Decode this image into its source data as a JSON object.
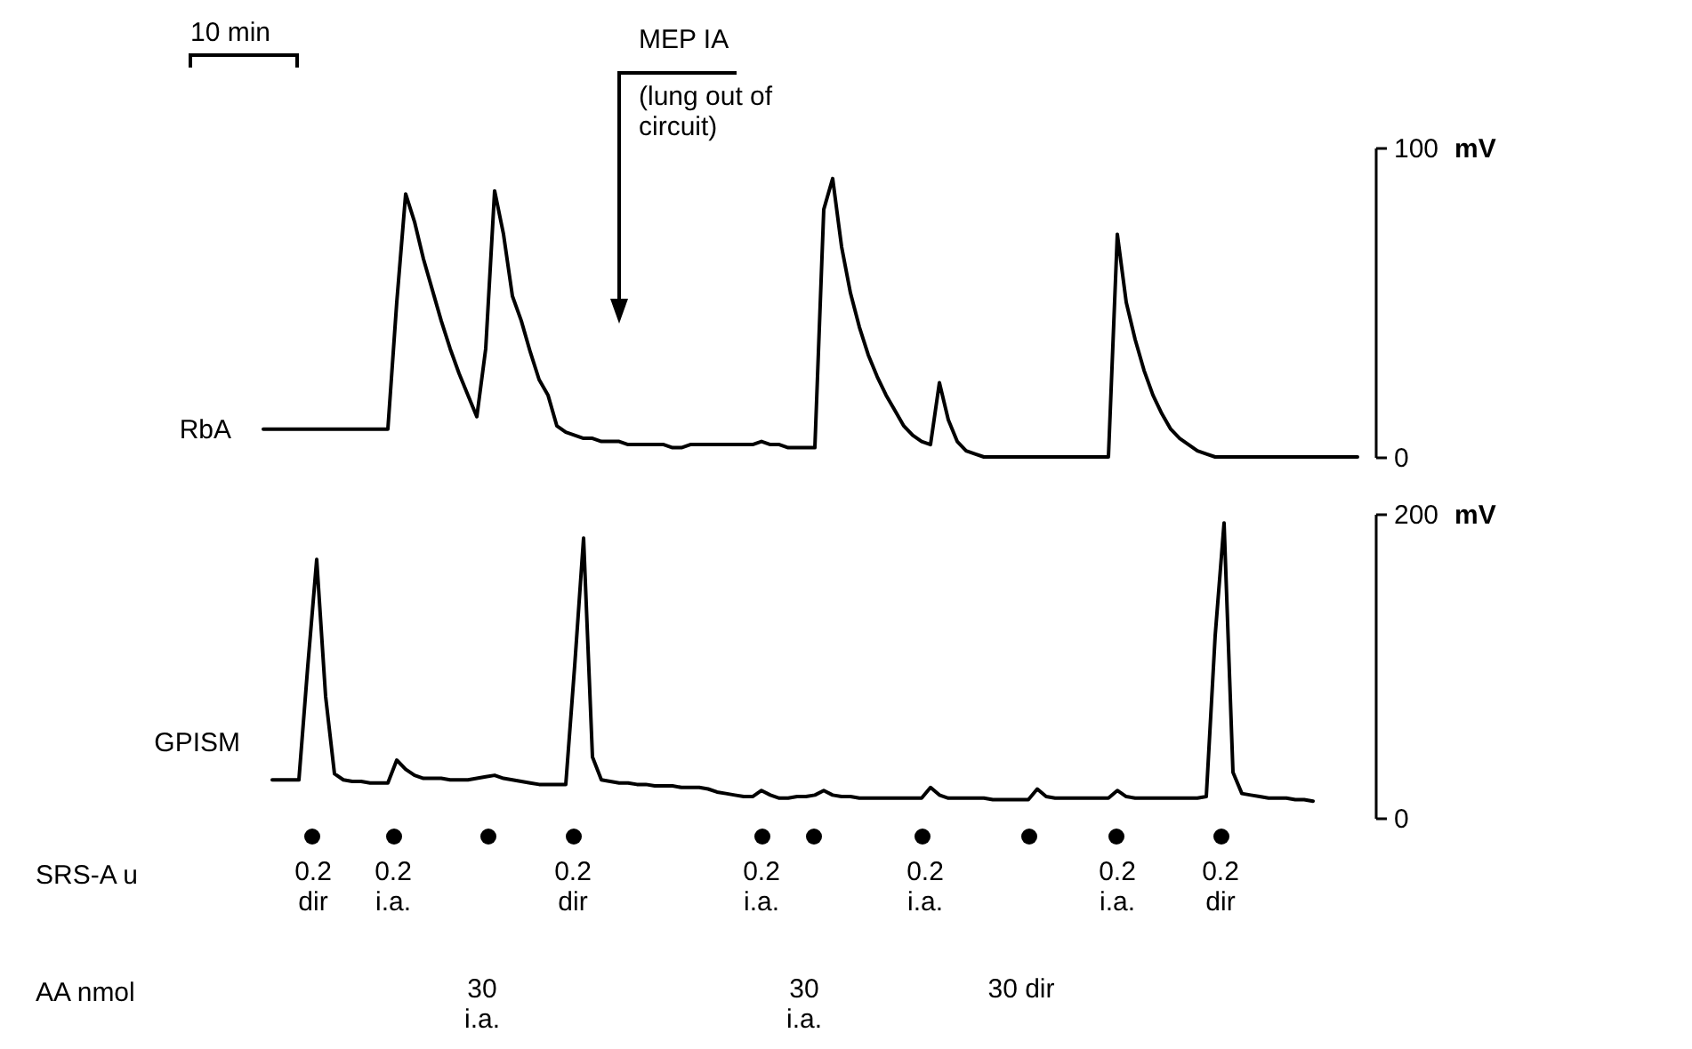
{
  "chart_data": [
    {
      "type": "line",
      "categories": [
        null,
        null,
        null,
        null,
        null,
        null,
        null,
        null,
        null,
        null,
        null,
        null,
        null,
        null,
        null,
        null,
        null,
        null,
        null,
        null,
        null,
        null,
        null,
        null,
        null,
        null,
        null,
        null,
        null,
        null,
        null,
        null,
        null,
        null,
        null,
        null,
        null,
        null,
        null,
        null,
        null,
        null,
        null,
        null,
        null,
        null,
        null,
        null,
        null,
        null,
        null,
        null,
        null,
        null,
        null,
        null,
        null,
        null,
        null,
        null,
        null,
        null,
        null,
        null,
        null,
        null,
        null,
        null,
        null,
        null,
        null,
        null,
        null,
        null,
        null,
        null,
        null,
        null,
        null,
        null,
        null,
        null,
        null,
        null,
        null,
        null,
        null,
        null,
        null,
        null,
        null,
        null,
        null,
        null,
        null,
        null,
        null,
        null,
        null,
        null,
        null,
        null,
        null,
        null,
        null,
        null,
        null,
        null,
        null,
        null,
        null,
        null,
        null,
        null,
        null,
        null,
        null,
        null,
        null,
        null,
        null,
        null,
        null,
        null,
        null
      ],
      "series": [
        {
          "name": "RbA",
          "color": "#000000",
          "values": [
            9,
            9,
            9,
            9,
            9,
            9,
            9,
            9,
            9,
            9,
            9,
            9,
            9,
            9,
            9,
            50,
            85,
            76,
            64,
            54,
            44,
            35,
            27,
            20,
            13,
            35,
            86,
            72,
            52,
            44,
            34,
            25,
            20,
            10,
            8,
            7,
            6,
            6,
            5,
            5,
            5,
            4,
            4,
            4,
            4,
            4,
            3,
            3,
            4,
            4,
            4,
            4,
            4,
            4,
            4,
            4,
            5,
            4,
            4,
            3,
            3,
            3,
            3,
            80,
            90,
            68,
            53,
            42,
            33,
            26,
            20,
            15,
            10,
            7,
            5,
            4,
            24,
            12,
            5,
            2,
            1,
            0,
            0,
            0,
            0,
            0,
            0,
            0,
            0,
            0,
            0,
            0,
            0,
            0,
            0,
            0,
            72,
            50,
            38,
            28,
            20,
            14,
            9,
            6,
            4,
            2,
            1,
            0,
            0,
            0,
            0,
            0,
            0,
            0,
            0,
            0,
            0,
            0,
            0,
            0,
            0,
            0,
            0,
            0,
            null
          ]
        }
      ],
      "ylim": [
        0,
        100
      ],
      "yticks": [
        0,
        100
      ],
      "ylabel": "mV",
      "tick_labels": "y",
      "annotations": [
        "10 min",
        "MEP IA",
        "(lung out of circuit)",
        "SRS-A u",
        "AA nmol",
        "0.2 dir",
        "0.2 i.a.",
        "0.2 dir",
        "0.2 i.a.",
        "0.2 i.a.",
        "0.2 i.a.",
        "0.2 dir",
        "30 i.a.",
        "30 i.a.",
        "30 dir"
      ]
    },
    {
      "type": "line",
      "categories": [
        null,
        null,
        null,
        null,
        null,
        null,
        null,
        null,
        null,
        null,
        null,
        null,
        null,
        null,
        null,
        null,
        null,
        null,
        null,
        null,
        null,
        null,
        null,
        null,
        null,
        null,
        null,
        null,
        null,
        null,
        null,
        null,
        null,
        null,
        null,
        null,
        null,
        null,
        null,
        null,
        null,
        null,
        null,
        null,
        null,
        null,
        null,
        null,
        null,
        null,
        null,
        null,
        null,
        null,
        null,
        null,
        null,
        null,
        null,
        null,
        null,
        null,
        null,
        null,
        null,
        null,
        null,
        null,
        null,
        null,
        null,
        null,
        null,
        null,
        null,
        null,
        null,
        null,
        null,
        null,
        null,
        null,
        null,
        null,
        null,
        null,
        null,
        null,
        null,
        null,
        null,
        null,
        null,
        null,
        null,
        null,
        null,
        null,
        null,
        null,
        null,
        null,
        null,
        null,
        null,
        null,
        null,
        null,
        null,
        null,
        null,
        null,
        null,
        null,
        null,
        null,
        null,
        null,
        null,
        null,
        null,
        null,
        null,
        null,
        null
      ],
      "series": [
        {
          "name": "GPISM",
          "color": "#000000",
          "values": [
            null,
            25,
            25,
            25,
            25,
            100,
            170,
            80,
            29,
            25,
            24,
            24,
            23,
            23,
            23,
            38,
            32,
            28,
            26,
            26,
            26,
            25,
            25,
            25,
            26,
            27,
            28,
            26,
            25,
            24,
            23,
            22,
            22,
            22,
            22,
            100,
            184,
            40,
            25,
            24,
            23,
            23,
            22,
            22,
            21,
            21,
            21,
            20,
            20,
            20,
            19,
            17,
            16,
            15,
            14,
            14,
            18,
            15,
            13,
            13,
            14,
            14,
            15,
            18,
            15,
            14,
            14,
            13,
            13,
            13,
            13,
            13,
            13,
            13,
            13,
            20,
            15,
            13,
            13,
            13,
            13,
            13,
            12,
            12,
            12,
            12,
            12,
            19,
            14,
            13,
            13,
            13,
            13,
            13,
            13,
            13,
            18,
            14,
            13,
            13,
            13,
            13,
            13,
            13,
            13,
            13,
            14,
            120,
            194,
            30,
            16,
            15,
            14,
            13,
            13,
            13,
            12,
            12,
            11,
            null,
            null,
            null,
            null,
            null,
            null
          ]
        }
      ],
      "ylim": [
        0,
        200
      ],
      "yticks": [
        0,
        200
      ],
      "ylabel": "mV",
      "tick_labels": "y"
    }
  ]
}
